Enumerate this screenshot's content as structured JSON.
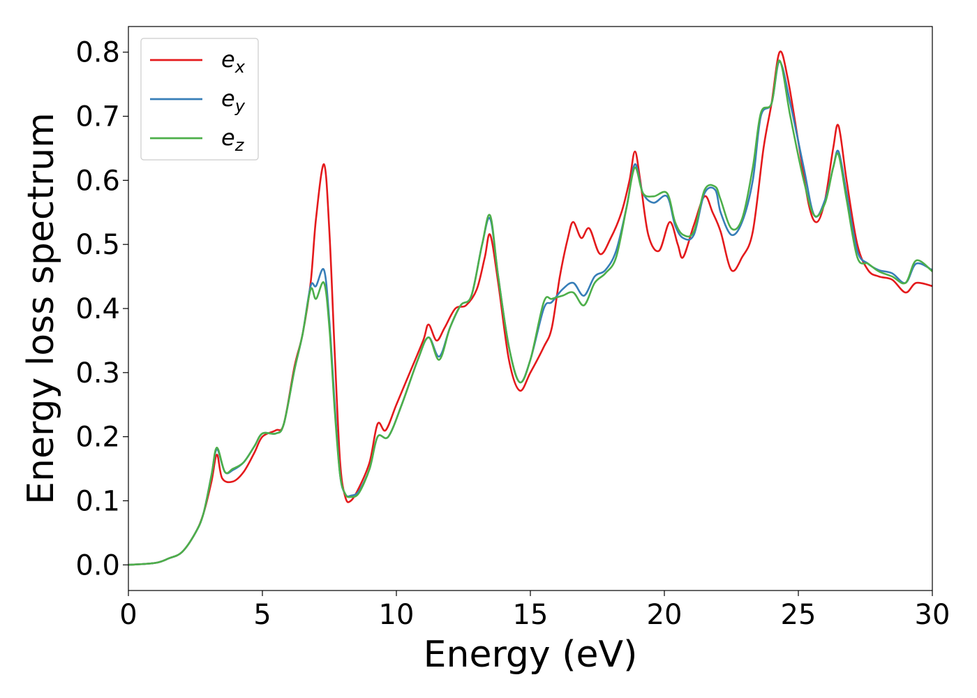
{
  "chart_data": {
    "type": "line",
    "title": "",
    "xlabel": "Energy (eV)",
    "ylabel": "Energy loss spectrum",
    "xlim": [
      0,
      30
    ],
    "ylim": [
      -0.04,
      0.84
    ],
    "xticks": [
      0,
      5,
      10,
      15,
      20,
      25,
      30
    ],
    "xtick_labels": [
      "0",
      "5",
      "10",
      "15",
      "20",
      "25",
      "30"
    ],
    "yticks": [
      0.0,
      0.1,
      0.2,
      0.3,
      0.4,
      0.5,
      0.6,
      0.7,
      0.8
    ],
    "ytick_labels": [
      "0.0",
      "0.1",
      "0.2",
      "0.3",
      "0.4",
      "0.5",
      "0.6",
      "0.7",
      "0.8"
    ],
    "grid": false,
    "legend_position": "top-left",
    "series": [
      {
        "name": "e",
        "subscript": "x",
        "color": "#e41a1c",
        "points": [
          [
            0,
            0
          ],
          [
            1,
            0.003
          ],
          [
            1.5,
            0.01
          ],
          [
            2,
            0.02
          ],
          [
            2.5,
            0.05
          ],
          [
            2.8,
            0.08
          ],
          [
            3.1,
            0.13
          ],
          [
            3.3,
            0.172
          ],
          [
            3.5,
            0.135
          ],
          [
            3.9,
            0.13
          ],
          [
            4.3,
            0.145
          ],
          [
            4.7,
            0.175
          ],
          [
            5,
            0.2
          ],
          [
            5.5,
            0.21
          ],
          [
            5.8,
            0.22
          ],
          [
            6.2,
            0.31
          ],
          [
            6.5,
            0.36
          ],
          [
            6.8,
            0.44
          ],
          [
            7.0,
            0.54
          ],
          [
            7.3,
            0.625
          ],
          [
            7.5,
            0.52
          ],
          [
            7.7,
            0.33
          ],
          [
            7.9,
            0.16
          ],
          [
            8.1,
            0.105
          ],
          [
            8.3,
            0.1
          ],
          [
            8.6,
            0.12
          ],
          [
            9.0,
            0.16
          ],
          [
            9.3,
            0.22
          ],
          [
            9.6,
            0.21
          ],
          [
            10.0,
            0.25
          ],
          [
            10.5,
            0.3
          ],
          [
            11.0,
            0.35
          ],
          [
            11.2,
            0.375
          ],
          [
            11.5,
            0.35
          ],
          [
            11.8,
            0.37
          ],
          [
            12.2,
            0.4
          ],
          [
            12.6,
            0.405
          ],
          [
            13.0,
            0.43
          ],
          [
            13.3,
            0.48
          ],
          [
            13.5,
            0.515
          ],
          [
            13.8,
            0.44
          ],
          [
            14.2,
            0.32
          ],
          [
            14.6,
            0.272
          ],
          [
            15.0,
            0.3
          ],
          [
            15.5,
            0.34
          ],
          [
            15.8,
            0.37
          ],
          [
            16.1,
            0.45
          ],
          [
            16.4,
            0.51
          ],
          [
            16.6,
            0.535
          ],
          [
            16.9,
            0.51
          ],
          [
            17.2,
            0.525
          ],
          [
            17.6,
            0.485
          ],
          [
            18.0,
            0.51
          ],
          [
            18.4,
            0.55
          ],
          [
            18.7,
            0.6
          ],
          [
            18.9,
            0.645
          ],
          [
            19.1,
            0.6
          ],
          [
            19.4,
            0.515
          ],
          [
            19.8,
            0.49
          ],
          [
            20.2,
            0.535
          ],
          [
            20.5,
            0.5
          ],
          [
            20.7,
            0.48
          ],
          [
            21.1,
            0.53
          ],
          [
            21.5,
            0.575
          ],
          [
            21.8,
            0.55
          ],
          [
            22.1,
            0.52
          ],
          [
            22.5,
            0.46
          ],
          [
            22.9,
            0.48
          ],
          [
            23.3,
            0.52
          ],
          [
            23.7,
            0.65
          ],
          [
            24.0,
            0.72
          ],
          [
            24.3,
            0.8
          ],
          [
            24.6,
            0.76
          ],
          [
            25.0,
            0.66
          ],
          [
            25.4,
            0.56
          ],
          [
            25.7,
            0.535
          ],
          [
            26.0,
            0.57
          ],
          [
            26.3,
            0.65
          ],
          [
            26.5,
            0.685
          ],
          [
            26.8,
            0.6
          ],
          [
            27.2,
            0.5
          ],
          [
            27.6,
            0.46
          ],
          [
            28.0,
            0.45
          ],
          [
            28.5,
            0.445
          ],
          [
            29.0,
            0.425
          ],
          [
            29.4,
            0.44
          ],
          [
            30.0,
            0.435
          ]
        ]
      },
      {
        "name": "e",
        "subscript": "y",
        "color": "#377eb8",
        "points": [
          [
            0,
            0
          ],
          [
            1,
            0.003
          ],
          [
            1.5,
            0.01
          ],
          [
            2,
            0.02
          ],
          [
            2.5,
            0.05
          ],
          [
            2.8,
            0.08
          ],
          [
            3.1,
            0.14
          ],
          [
            3.3,
            0.18
          ],
          [
            3.6,
            0.145
          ],
          [
            3.9,
            0.148
          ],
          [
            4.3,
            0.16
          ],
          [
            4.7,
            0.185
          ],
          [
            5.0,
            0.205
          ],
          [
            5.5,
            0.205
          ],
          [
            5.8,
            0.22
          ],
          [
            6.2,
            0.305
          ],
          [
            6.5,
            0.36
          ],
          [
            6.8,
            0.435
          ],
          [
            7.0,
            0.435
          ],
          [
            7.3,
            0.46
          ],
          [
            7.5,
            0.38
          ],
          [
            7.7,
            0.25
          ],
          [
            7.9,
            0.14
          ],
          [
            8.1,
            0.11
          ],
          [
            8.3,
            0.108
          ],
          [
            8.6,
            0.115
          ],
          [
            9.0,
            0.15
          ],
          [
            9.3,
            0.2
          ],
          [
            9.7,
            0.2
          ],
          [
            10.2,
            0.25
          ],
          [
            10.8,
            0.32
          ],
          [
            11.2,
            0.355
          ],
          [
            11.6,
            0.325
          ],
          [
            12.0,
            0.37
          ],
          [
            12.4,
            0.405
          ],
          [
            12.8,
            0.42
          ],
          [
            13.2,
            0.5
          ],
          [
            13.5,
            0.54
          ],
          [
            13.8,
            0.45
          ],
          [
            14.2,
            0.34
          ],
          [
            14.6,
            0.285
          ],
          [
            15.0,
            0.32
          ],
          [
            15.5,
            0.4
          ],
          [
            15.8,
            0.41
          ],
          [
            16.2,
            0.43
          ],
          [
            16.6,
            0.44
          ],
          [
            17.0,
            0.42
          ],
          [
            17.4,
            0.45
          ],
          [
            17.8,
            0.46
          ],
          [
            18.2,
            0.49
          ],
          [
            18.6,
            0.56
          ],
          [
            18.9,
            0.625
          ],
          [
            19.2,
            0.58
          ],
          [
            19.6,
            0.565
          ],
          [
            20.1,
            0.575
          ],
          [
            20.4,
            0.53
          ],
          [
            20.7,
            0.51
          ],
          [
            21.1,
            0.515
          ],
          [
            21.5,
            0.58
          ],
          [
            21.9,
            0.585
          ],
          [
            22.1,
            0.55
          ],
          [
            22.5,
            0.515
          ],
          [
            22.9,
            0.535
          ],
          [
            23.3,
            0.6
          ],
          [
            23.6,
            0.7
          ],
          [
            24.0,
            0.72
          ],
          [
            24.3,
            0.785
          ],
          [
            24.7,
            0.72
          ],
          [
            25.2,
            0.62
          ],
          [
            25.6,
            0.545
          ],
          [
            26.0,
            0.57
          ],
          [
            26.3,
            0.62
          ],
          [
            26.5,
            0.645
          ],
          [
            26.8,
            0.58
          ],
          [
            27.2,
            0.49
          ],
          [
            27.6,
            0.47
          ],
          [
            28.0,
            0.46
          ],
          [
            28.5,
            0.455
          ],
          [
            29.0,
            0.44
          ],
          [
            29.4,
            0.47
          ],
          [
            30.0,
            0.46
          ]
        ]
      },
      {
        "name": "e",
        "subscript": "z",
        "color": "#4daf4a",
        "points": [
          [
            0,
            0
          ],
          [
            1,
            0.003
          ],
          [
            1.5,
            0.01
          ],
          [
            2,
            0.02
          ],
          [
            2.5,
            0.05
          ],
          [
            2.8,
            0.08
          ],
          [
            3.1,
            0.14
          ],
          [
            3.3,
            0.183
          ],
          [
            3.6,
            0.145
          ],
          [
            3.9,
            0.15
          ],
          [
            4.3,
            0.16
          ],
          [
            4.7,
            0.185
          ],
          [
            5.0,
            0.205
          ],
          [
            5.5,
            0.205
          ],
          [
            5.8,
            0.22
          ],
          [
            6.2,
            0.305
          ],
          [
            6.5,
            0.36
          ],
          [
            6.8,
            0.43
          ],
          [
            7.0,
            0.415
          ],
          [
            7.3,
            0.44
          ],
          [
            7.5,
            0.37
          ],
          [
            7.7,
            0.24
          ],
          [
            7.9,
            0.14
          ],
          [
            8.1,
            0.11
          ],
          [
            8.3,
            0.106
          ],
          [
            8.6,
            0.112
          ],
          [
            9.0,
            0.15
          ],
          [
            9.3,
            0.2
          ],
          [
            9.7,
            0.2
          ],
          [
            10.2,
            0.25
          ],
          [
            10.8,
            0.32
          ],
          [
            11.2,
            0.355
          ],
          [
            11.6,
            0.32
          ],
          [
            12.0,
            0.37
          ],
          [
            12.4,
            0.405
          ],
          [
            12.8,
            0.42
          ],
          [
            13.2,
            0.5
          ],
          [
            13.5,
            0.545
          ],
          [
            13.8,
            0.45
          ],
          [
            14.2,
            0.34
          ],
          [
            14.6,
            0.285
          ],
          [
            15.0,
            0.32
          ],
          [
            15.5,
            0.41
          ],
          [
            15.8,
            0.415
          ],
          [
            16.2,
            0.42
          ],
          [
            16.6,
            0.425
          ],
          [
            17.0,
            0.405
          ],
          [
            17.4,
            0.44
          ],
          [
            17.8,
            0.455
          ],
          [
            18.2,
            0.48
          ],
          [
            18.6,
            0.56
          ],
          [
            18.9,
            0.62
          ],
          [
            19.2,
            0.58
          ],
          [
            19.6,
            0.575
          ],
          [
            20.1,
            0.58
          ],
          [
            20.4,
            0.535
          ],
          [
            20.7,
            0.515
          ],
          [
            21.1,
            0.52
          ],
          [
            21.5,
            0.585
          ],
          [
            21.9,
            0.59
          ],
          [
            22.1,
            0.57
          ],
          [
            22.5,
            0.525
          ],
          [
            22.9,
            0.54
          ],
          [
            23.3,
            0.62
          ],
          [
            23.6,
            0.705
          ],
          [
            24.0,
            0.72
          ],
          [
            24.3,
            0.787
          ],
          [
            24.7,
            0.7
          ],
          [
            25.2,
            0.6
          ],
          [
            25.6,
            0.545
          ],
          [
            26.0,
            0.565
          ],
          [
            26.3,
            0.62
          ],
          [
            26.5,
            0.64
          ],
          [
            26.8,
            0.57
          ],
          [
            27.2,
            0.48
          ],
          [
            27.6,
            0.47
          ],
          [
            28.0,
            0.458
          ],
          [
            28.5,
            0.45
          ],
          [
            29.0,
            0.44
          ],
          [
            29.4,
            0.475
          ],
          [
            30.0,
            0.458
          ]
        ]
      }
    ]
  }
}
